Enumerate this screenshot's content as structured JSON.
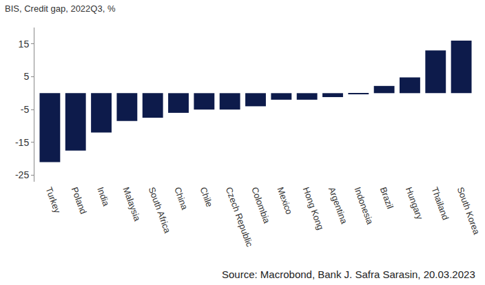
{
  "chart_data": {
    "type": "bar",
    "title": "BIS, Credit gap, 2022Q3, %",
    "categories": [
      "Turkey",
      "Poland",
      "India",
      "Malaysia",
      "South Africa",
      "China",
      "Chile",
      "Czech Republic",
      "Colombia",
      "Mexico",
      "Hong Kong",
      "Argentina",
      "Indonesia",
      "Brazil",
      "Hungary",
      "Thailand",
      "South Korea"
    ],
    "values": [
      -21,
      -17.5,
      -12,
      -8.5,
      -7.5,
      -6,
      -5,
      -5,
      -4,
      -2,
      -2,
      -1.2,
      -0.2,
      2.2,
      4.8,
      13,
      16
    ],
    "color": "#0d1b4b",
    "ylim": [
      -27,
      20
    ],
    "yticks": [
      -25,
      -15,
      -5,
      5,
      15
    ],
    "grid": false,
    "annotations": [
      "Source: Macrobond, Bank J. Safra Sarasin, 20.03.2023"
    ]
  }
}
